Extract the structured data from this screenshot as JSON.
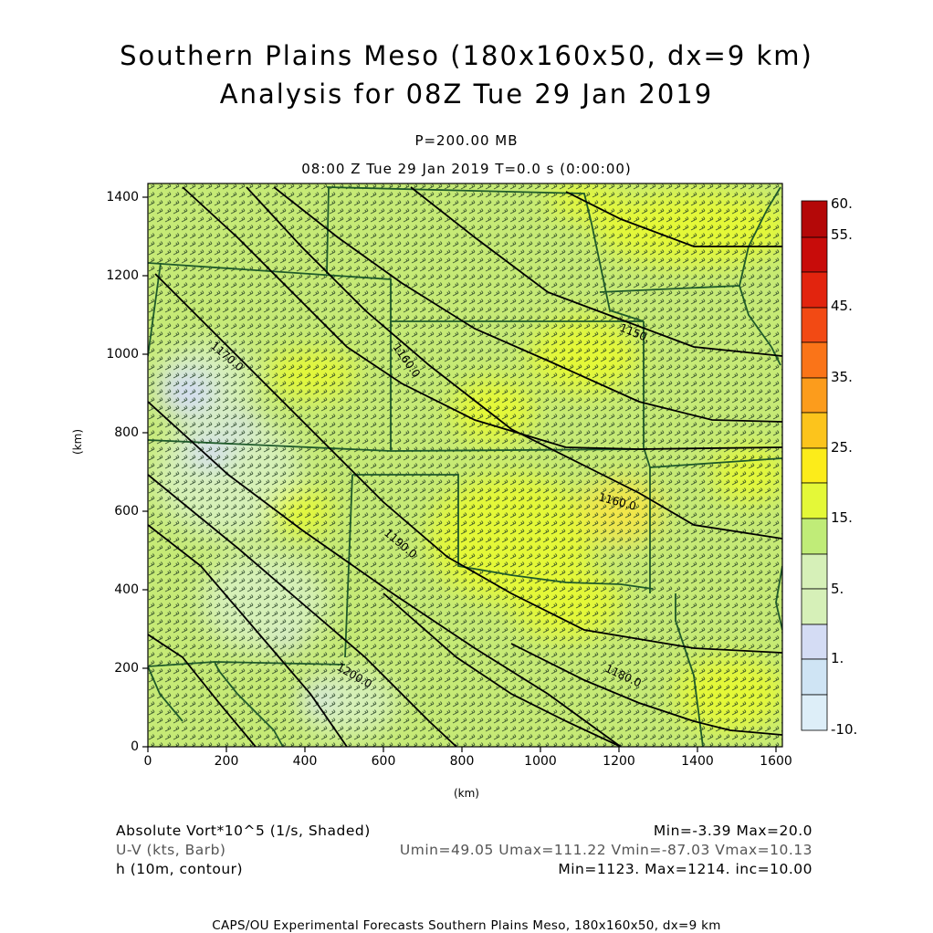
{
  "header": {
    "title_line1": "Southern Plains Meso (180x160x50, dx=9 km)",
    "title_line2": "Analysis for 08Z Tue 29 Jan 2019",
    "level": "P=200.00 MB",
    "valid_time": "08:00 Z Tue 29 Jan 2019    T=0.0 s (0:00:00)"
  },
  "axes": {
    "x_unit": "(km)",
    "y_unit": "(km)",
    "x_ticks": [
      "0",
      "200",
      "400",
      "600",
      "800",
      "1000",
      "1200",
      "1400",
      "1600"
    ],
    "y_ticks": [
      "0",
      "200",
      "400",
      "600",
      "800",
      "1000",
      "1200",
      "1400"
    ],
    "x_range": [
      0,
      1611
    ],
    "y_range": [
      0,
      1431
    ]
  },
  "contours": {
    "labels": [
      "1150.",
      "1160.0",
      "1160.0",
      "1170.0",
      "1180.0",
      "1190.0",
      "1200.0"
    ],
    "color": "#000000"
  },
  "colorbar": {
    "labels": [
      "60.",
      "55.",
      "45.",
      "35.",
      "25.",
      "15.",
      "5.",
      "1.",
      "-10."
    ],
    "colors": [
      "#ffffff",
      "#ddeef8",
      "#cfe4f4",
      "#d4dcf4",
      "#d6f0b8",
      "#c0ec78",
      "#e4f838",
      "#fcec1a",
      "#fcc41c",
      "#fc9c1c",
      "#fa7418",
      "#f24a14",
      "#e2240e",
      "#c80c0a",
      "#b40808"
    ]
  },
  "field_colors": {
    "base": "#c6ea76",
    "light": "#d6f0b8",
    "yellow": "#e4f838",
    "lavender": "#d4dcf4",
    "orange_tint": "#f2e64a",
    "borders": "#1f5a2a",
    "barbs": "#1e3a1e"
  },
  "footer": {
    "shaded_label": "Absolute Vort*10^5 (1/s, Shaded)",
    "shaded_stats": "Min=-3.39 Max=20.0",
    "barb_label": "U-V (kts, Barb)",
    "barb_stats": "Umin=49.05 Umax=111.22 Vmin=-87.03 Vmax=10.13",
    "contour_label": "h (10m, contour)",
    "contour_stats": "Min=1123. Max=1214. inc=10.00",
    "credit": "CAPS/OU Experimental Forecasts  Southern Plains Meso, 180x160x50, dx=9 km"
  }
}
